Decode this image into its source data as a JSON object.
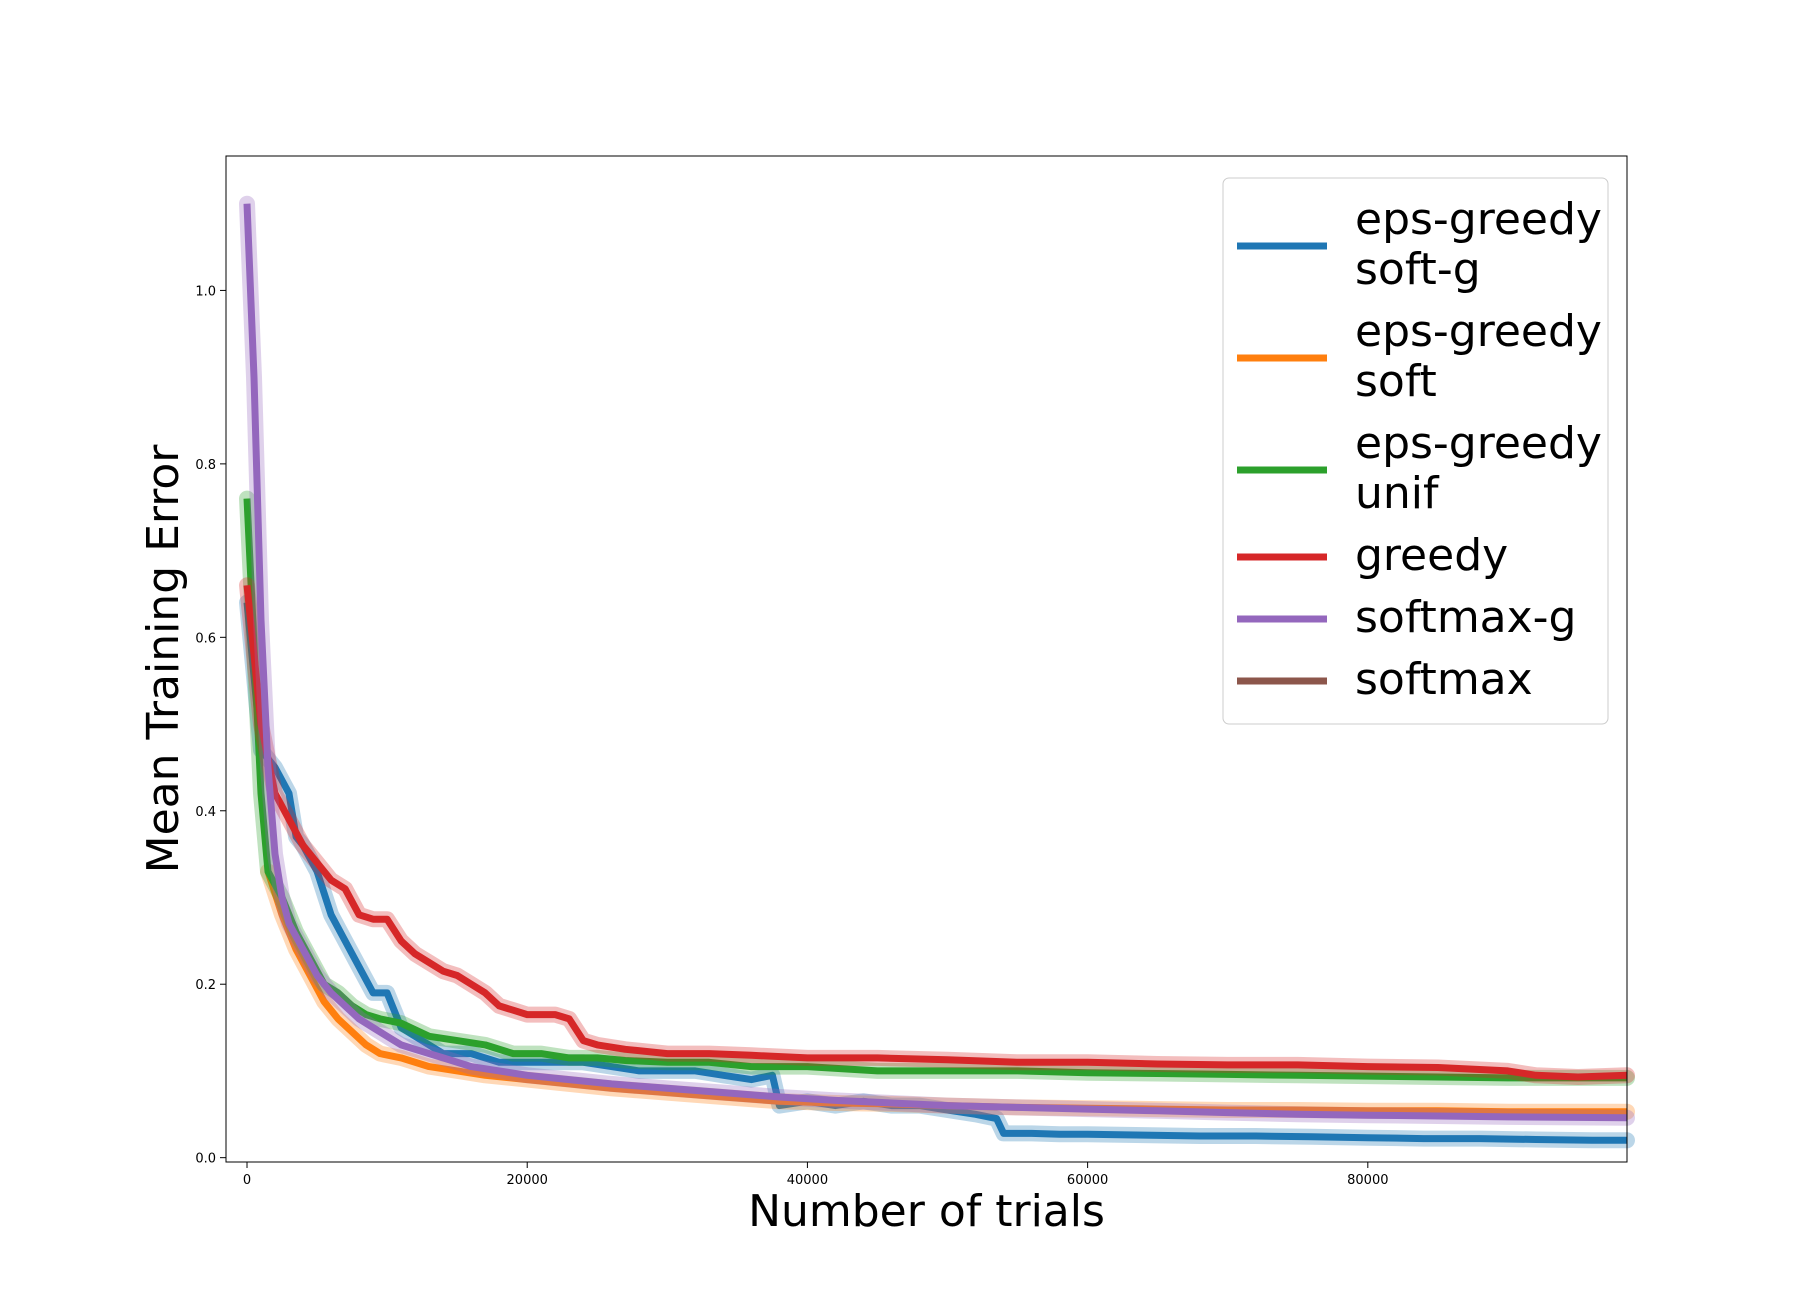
{
  "chart_data": {
    "type": "line",
    "xlabel": "Number of trials",
    "ylabel": "Mean Training Error",
    "xlim": [
      -1500,
      98500
    ],
    "ylim": [
      -0.005,
      1.155
    ],
    "xticks": [
      {
        "value": 0,
        "label": "0"
      },
      {
        "value": 20000,
        "label": "20000"
      },
      {
        "value": 40000,
        "label": "40000"
      },
      {
        "value": 60000,
        "label": "60000"
      },
      {
        "value": 80000,
        "label": "80000"
      }
    ],
    "yticks": [
      {
        "value": 0.0,
        "label": "0.0"
      },
      {
        "value": 0.2,
        "label": "0.2"
      },
      {
        "value": 0.4,
        "label": "0.4"
      },
      {
        "value": 0.6,
        "label": "0.6"
      },
      {
        "value": 0.8,
        "label": "0.8"
      },
      {
        "value": 1.0,
        "label": "1.0"
      }
    ],
    "grid": false,
    "legend_position": "top-right",
    "series": [
      {
        "name": "eps-greedy\nsoft-g",
        "color": "#1f77b4",
        "points": [
          [
            0,
            0.64
          ],
          [
            1000,
            0.47
          ],
          [
            2000,
            0.45
          ],
          [
            3000,
            0.42
          ],
          [
            3500,
            0.37
          ],
          [
            4000,
            0.36
          ],
          [
            5000,
            0.33
          ],
          [
            6000,
            0.28
          ],
          [
            7000,
            0.25
          ],
          [
            8000,
            0.22
          ],
          [
            9000,
            0.19
          ],
          [
            10000,
            0.19
          ],
          [
            11000,
            0.15
          ],
          [
            12000,
            0.14
          ],
          [
            14000,
            0.12
          ],
          [
            16000,
            0.12
          ],
          [
            18000,
            0.11
          ],
          [
            20000,
            0.11
          ],
          [
            22000,
            0.11
          ],
          [
            24000,
            0.11
          ],
          [
            26000,
            0.105
          ],
          [
            28000,
            0.1
          ],
          [
            30000,
            0.1
          ],
          [
            32000,
            0.1
          ],
          [
            34000,
            0.095
          ],
          [
            36000,
            0.09
          ],
          [
            37500,
            0.095
          ],
          [
            38000,
            0.06
          ],
          [
            40000,
            0.065
          ],
          [
            42000,
            0.06
          ],
          [
            44000,
            0.065
          ],
          [
            46000,
            0.06
          ],
          [
            48000,
            0.06
          ],
          [
            50000,
            0.055
          ],
          [
            52000,
            0.05
          ],
          [
            53500,
            0.045
          ],
          [
            54000,
            0.028
          ],
          [
            56000,
            0.028
          ],
          [
            58000,
            0.027
          ],
          [
            60000,
            0.027
          ],
          [
            64000,
            0.026
          ],
          [
            68000,
            0.025
          ],
          [
            72000,
            0.025
          ],
          [
            76000,
            0.024
          ],
          [
            80000,
            0.023
          ],
          [
            84000,
            0.022
          ],
          [
            88000,
            0.022
          ],
          [
            92000,
            0.021
          ],
          [
            96000,
            0.02
          ],
          [
            98500,
            0.02
          ]
        ]
      },
      {
        "name": "eps-greedy\nsoft",
        "color": "#ff7f0e",
        "points": [
          [
            1500,
            0.33
          ],
          [
            2500,
            0.28
          ],
          [
            3500,
            0.24
          ],
          [
            4500,
            0.21
          ],
          [
            5500,
            0.18
          ],
          [
            6500,
            0.16
          ],
          [
            7500,
            0.145
          ],
          [
            8500,
            0.13
          ],
          [
            9500,
            0.12
          ],
          [
            11000,
            0.115
          ],
          [
            13000,
            0.105
          ],
          [
            15000,
            0.1
          ],
          [
            17000,
            0.095
          ],
          [
            20000,
            0.09
          ],
          [
            23000,
            0.085
          ],
          [
            26000,
            0.08
          ],
          [
            30000,
            0.075
          ],
          [
            34000,
            0.07
          ],
          [
            38000,
            0.065
          ],
          [
            42000,
            0.063
          ],
          [
            46000,
            0.062
          ],
          [
            50000,
            0.06
          ],
          [
            55000,
            0.058
          ],
          [
            60000,
            0.057
          ],
          [
            65000,
            0.056
          ],
          [
            70000,
            0.055
          ],
          [
            75000,
            0.055
          ],
          [
            80000,
            0.054
          ],
          [
            85000,
            0.054
          ],
          [
            90000,
            0.053
          ],
          [
            98500,
            0.053
          ]
        ]
      },
      {
        "name": "eps-greedy\nunif",
        "color": "#2ca02c",
        "points": [
          [
            0,
            0.76
          ],
          [
            1000,
            0.42
          ],
          [
            1500,
            0.33
          ],
          [
            2500,
            0.3
          ],
          [
            3500,
            0.26
          ],
          [
            4500,
            0.23
          ],
          [
            5500,
            0.2
          ],
          [
            6500,
            0.19
          ],
          [
            7500,
            0.175
          ],
          [
            8500,
            0.165
          ],
          [
            9500,
            0.16
          ],
          [
            11000,
            0.155
          ],
          [
            13000,
            0.14
          ],
          [
            15000,
            0.135
          ],
          [
            17000,
            0.13
          ],
          [
            19000,
            0.12
          ],
          [
            21000,
            0.12
          ],
          [
            23000,
            0.115
          ],
          [
            25000,
            0.115
          ],
          [
            27000,
            0.112
          ],
          [
            30000,
            0.11
          ],
          [
            33000,
            0.11
          ],
          [
            36000,
            0.105
          ],
          [
            40000,
            0.105
          ],
          [
            45000,
            0.1
          ],
          [
            50000,
            0.1
          ],
          [
            55000,
            0.1
          ],
          [
            60000,
            0.098
          ],
          [
            65000,
            0.097
          ],
          [
            70000,
            0.096
          ],
          [
            75000,
            0.095
          ],
          [
            80000,
            0.094
          ],
          [
            85000,
            0.093
          ],
          [
            90000,
            0.092
          ],
          [
            95000,
            0.092
          ],
          [
            98500,
            0.092
          ]
        ]
      },
      {
        "name": "greedy",
        "color": "#d62728",
        "points": [
          [
            0,
            0.66
          ],
          [
            1000,
            0.5
          ],
          [
            2000,
            0.42
          ],
          [
            3000,
            0.39
          ],
          [
            4000,
            0.36
          ],
          [
            5000,
            0.34
          ],
          [
            6000,
            0.32
          ],
          [
            7000,
            0.31
          ],
          [
            8000,
            0.28
          ],
          [
            9000,
            0.275
          ],
          [
            10000,
            0.275
          ],
          [
            11000,
            0.25
          ],
          [
            12000,
            0.235
          ],
          [
            13000,
            0.225
          ],
          [
            14000,
            0.215
          ],
          [
            15000,
            0.21
          ],
          [
            16000,
            0.2
          ],
          [
            17000,
            0.19
          ],
          [
            18000,
            0.175
          ],
          [
            19000,
            0.17
          ],
          [
            20000,
            0.165
          ],
          [
            21000,
            0.165
          ],
          [
            22000,
            0.165
          ],
          [
            23000,
            0.16
          ],
          [
            24000,
            0.135
          ],
          [
            25000,
            0.13
          ],
          [
            27000,
            0.125
          ],
          [
            30000,
            0.12
          ],
          [
            33000,
            0.12
          ],
          [
            36000,
            0.118
          ],
          [
            40000,
            0.115
          ],
          [
            45000,
            0.115
          ],
          [
            50000,
            0.113
          ],
          [
            55000,
            0.11
          ],
          [
            60000,
            0.11
          ],
          [
            65000,
            0.108
          ],
          [
            70000,
            0.107
          ],
          [
            75000,
            0.107
          ],
          [
            80000,
            0.105
          ],
          [
            85000,
            0.104
          ],
          [
            90000,
            0.1
          ],
          [
            92000,
            0.095
          ],
          [
            95000,
            0.093
          ],
          [
            98500,
            0.095
          ]
        ]
      },
      {
        "name": "softmax-g",
        "color": "#9467bd",
        "points": [
          [
            0,
            1.1
          ],
          [
            500,
            0.9
          ],
          [
            1000,
            0.62
          ],
          [
            1500,
            0.45
          ],
          [
            2000,
            0.35
          ],
          [
            2500,
            0.3
          ],
          [
            3000,
            0.27
          ],
          [
            4000,
            0.24
          ],
          [
            5000,
            0.21
          ],
          [
            6000,
            0.19
          ],
          [
            7000,
            0.175
          ],
          [
            8000,
            0.16
          ],
          [
            9000,
            0.15
          ],
          [
            10000,
            0.14
          ],
          [
            11000,
            0.13
          ],
          [
            12000,
            0.125
          ],
          [
            14000,
            0.115
          ],
          [
            16000,
            0.105
          ],
          [
            18000,
            0.1
          ],
          [
            20000,
            0.095
          ],
          [
            23000,
            0.09
          ],
          [
            26000,
            0.085
          ],
          [
            30000,
            0.08
          ],
          [
            34000,
            0.075
          ],
          [
            38000,
            0.07
          ],
          [
            42000,
            0.066
          ],
          [
            46000,
            0.063
          ],
          [
            50000,
            0.06
          ],
          [
            55000,
            0.058
          ],
          [
            60000,
            0.056
          ],
          [
            65000,
            0.054
          ],
          [
            70000,
            0.052
          ],
          [
            75000,
            0.05
          ],
          [
            80000,
            0.049
          ],
          [
            85000,
            0.048
          ],
          [
            90000,
            0.047
          ],
          [
            98500,
            0.046
          ]
        ]
      },
      {
        "name": "softmax",
        "color": "#8c564b",
        "points": []
      }
    ]
  }
}
